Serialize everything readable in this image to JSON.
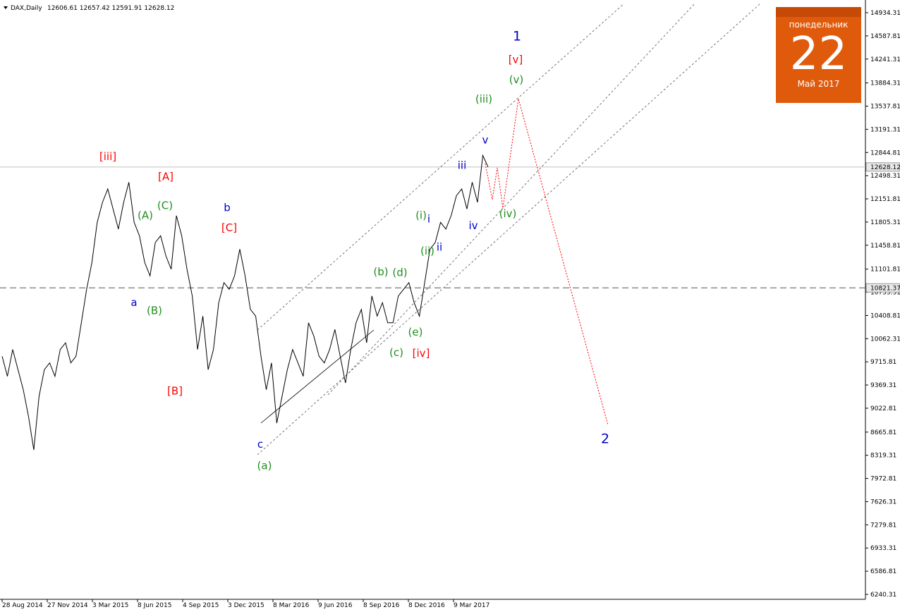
{
  "header": {
    "symbol": "DAX,Daily",
    "ohlc": "12606.61 12657.42 12591.91 12628.12"
  },
  "calendar": {
    "day_name": "понедельник",
    "day": "22",
    "month": "Май 2017",
    "color": "#e05a0c"
  },
  "colors": {
    "red": "#ff0000",
    "green": "#1f8f1f",
    "blue": "#0000cc",
    "price_line": "#000000",
    "projection": "#ff0000",
    "channel": "#555555"
  },
  "chart_data": {
    "type": "line",
    "ylim": [
      6240.31,
      15050
    ],
    "y_ticks": [
      "14934.31",
      "14587.81",
      "14241.31",
      "13884.31",
      "13537.81",
      "13191.31",
      "12844.81",
      "12498.31",
      "12151.81",
      "11805.31",
      "11458.81",
      "11101.81",
      "10755.31",
      "10408.81",
      "10062.31",
      "9715.81",
      "9369.31",
      "9022.81",
      "8665.81",
      "8319.31",
      "7972.81",
      "7626.31",
      "7279.81",
      "6933.31",
      "6586.81",
      "6240.31"
    ],
    "x_ticks": [
      "28 Aug 2014",
      "27 Nov 2014",
      "3 Mar 2015",
      "8 Jun 2015",
      "4 Sep 2015",
      "3 Dec 2015",
      "8 Mar 2016",
      "9 Jun 2016",
      "8 Sep 2016",
      "8 Dec 2016",
      "9 Mar 2017"
    ],
    "current_price": "12628.12",
    "level_price": "10821.37",
    "series": [
      {
        "values": [
          9800,
          9500,
          9900,
          9600,
          9300,
          8900,
          8400,
          9200,
          9600,
          9700,
          9500,
          9900,
          10000,
          9700,
          9800,
          10300,
          10800,
          11200,
          11800,
          12100,
          12300,
          12000,
          11700,
          12100,
          12400,
          11800,
          11600,
          11200,
          11000,
          11500,
          11600,
          11300,
          11100,
          11900,
          11600,
          11100,
          10700,
          9900,
          10400,
          9600,
          9900,
          10600,
          10900,
          10800,
          11000,
          11400,
          11000,
          10500,
          10400,
          9800,
          9300,
          9700,
          8800,
          9200,
          9600,
          9900,
          9700,
          9500,
          10300,
          10100,
          9800,
          9700,
          9900,
          10200,
          9800,
          9400,
          9900,
          10300,
          10500,
          10000,
          10700,
          10400,
          10600,
          10300,
          10300,
          10700,
          10800,
          10900,
          10600,
          10400,
          10900,
          11400,
          11500,
          11800,
          11700,
          11900,
          12200,
          12300,
          12000,
          12400,
          12100,
          12800,
          12628
        ]
      }
    ],
    "annotations": [
      {
        "text": "1",
        "color": "blue",
        "price": 14520
      },
      {
        "text": "[v]",
        "color": "red",
        "price": 14180
      },
      {
        "text": "(v)",
        "color": "green",
        "price": 13880
      },
      {
        "text": "(iii)",
        "color": "green",
        "price": 13590
      },
      {
        "text": "v",
        "color": "blue",
        "price": 12980
      },
      {
        "text": "iii",
        "color": "blue",
        "price": 12600
      },
      {
        "text": "[iii]",
        "color": "red",
        "price": 12730
      },
      {
        "text": "[A]",
        "color": "red",
        "price": 12430
      },
      {
        "text": "(C)",
        "color": "green",
        "price": 12000
      },
      {
        "text": "(A)",
        "color": "green",
        "price": 11850
      },
      {
        "text": "b",
        "color": "blue",
        "price": 11970
      },
      {
        "text": "[C]",
        "color": "red",
        "price": 11670
      },
      {
        "text": "(i)",
        "color": "green",
        "price": 11850
      },
      {
        "text": "i",
        "color": "blue",
        "price": 11800
      },
      {
        "text": "(iv)",
        "color": "green",
        "price": 11880
      },
      {
        "text": "iv",
        "color": "blue",
        "price": 11700
      },
      {
        "text": "ii",
        "color": "blue",
        "price": 11380
      },
      {
        "text": "(ii)",
        "color": "green",
        "price": 11320
      },
      {
        "text": "(b)",
        "color": "green",
        "price": 11010
      },
      {
        "text": "(d)",
        "color": "green",
        "price": 11000
      },
      {
        "text": "a",
        "color": "blue",
        "price": 10550
      },
      {
        "text": "(B)",
        "color": "green",
        "price": 10430
      },
      {
        "text": "(e)",
        "color": "green",
        "price": 10110
      },
      {
        "text": "(c)",
        "color": "green",
        "price": 9800
      },
      {
        "text": "[iv]",
        "color": "red",
        "price": 9790
      },
      {
        "text": "[B]",
        "color": "red",
        "price": 9230
      },
      {
        "text": "c",
        "color": "blue",
        "price": 8430
      },
      {
        "text": "(a)",
        "color": "green",
        "price": 8110
      },
      {
        "text": "2",
        "color": "blue",
        "price": 8500
      }
    ]
  }
}
